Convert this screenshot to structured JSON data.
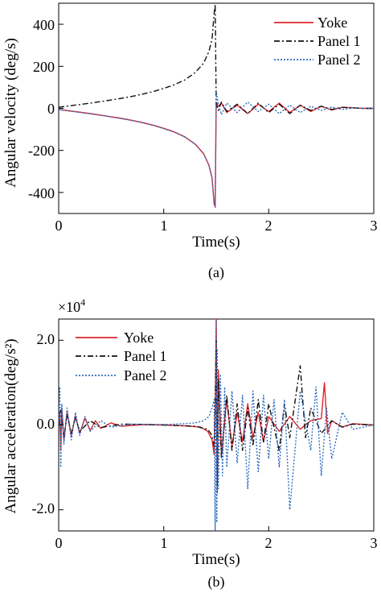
{
  "figure": {
    "panels": [
      {
        "caption": "(a)",
        "xlabel": "Time(s)",
        "ylabel": "Angular velocity (deg/s)",
        "multiplier": "",
        "multiplier_exp": "",
        "x_ticks": [
          "0",
          "1",
          "2",
          "3"
        ],
        "y_ticks": [
          "400",
          "200",
          "0",
          "-200",
          "-400"
        ]
      },
      {
        "caption": "(b)",
        "xlabel": "Time(s)",
        "ylabel": "Angular acceleration(deg/s²)",
        "multiplier": "×10",
        "multiplier_exp": "4",
        "x_ticks": [
          "0",
          "1",
          "2",
          "3"
        ],
        "y_ticks": [
          "2.0",
          "0.0",
          "-2.0"
        ]
      }
    ],
    "legend": [
      "Yoke",
      "Panel 1",
      "Panel 2"
    ]
  },
  "chart_data": [
    {
      "type": "line",
      "title": "",
      "caption": "(a)",
      "xlabel": "Time(s)",
      "ylabel": "Angular velocity (deg/s)",
      "xlim": [
        0,
        3
      ],
      "ylim": [
        -500,
        500
      ],
      "x_ticks": [
        0,
        1,
        2,
        3
      ],
      "y_ticks": [
        400,
        200,
        0,
        -200,
        -400
      ],
      "legend_position": "top-right",
      "grid": false,
      "series": [
        {
          "name": "Yoke",
          "color": "#e0262a",
          "dash": "solid",
          "x": [
            0,
            0.1,
            0.2,
            0.3,
            0.4,
            0.5,
            0.6,
            0.7,
            0.8,
            0.9,
            1.0,
            1.1,
            1.2,
            1.3,
            1.38,
            1.43,
            1.46,
            1.48,
            1.49,
            1.5,
            1.52,
            1.55,
            1.6,
            1.7,
            1.8,
            1.9,
            2.0,
            2.1,
            2.2,
            2.3,
            2.4,
            2.5,
            2.6,
            2.7,
            2.8,
            2.9,
            3.0
          ],
          "y": [
            -5,
            -12,
            -18,
            -25,
            -32,
            -40,
            -48,
            -57,
            -68,
            -80,
            -95,
            -112,
            -135,
            -170,
            -215,
            -270,
            -330,
            -450,
            -470,
            30,
            10,
            25,
            -20,
            15,
            -25,
            20,
            -15,
            25,
            -20,
            15,
            -15,
            10,
            -8,
            5,
            3,
            0,
            0
          ]
        },
        {
          "name": "Panel 1",
          "color": "#111111",
          "dash": "dashdot",
          "x": [
            0,
            0.1,
            0.2,
            0.3,
            0.4,
            0.5,
            0.6,
            0.7,
            0.8,
            0.9,
            1.0,
            1.1,
            1.2,
            1.3,
            1.38,
            1.43,
            1.46,
            1.48,
            1.49,
            1.5,
            1.52,
            1.55,
            1.6,
            1.7,
            1.8,
            1.9,
            2.0,
            2.1,
            2.2,
            2.3,
            2.4,
            2.5,
            2.6,
            2.7,
            2.8,
            2.9,
            3.0
          ],
          "y": [
            5,
            12,
            18,
            25,
            32,
            40,
            48,
            57,
            68,
            80,
            95,
            112,
            135,
            170,
            215,
            270,
            330,
            450,
            495,
            20,
            -10,
            30,
            -15,
            20,
            -25,
            25,
            -20,
            20,
            -25,
            15,
            -10,
            10,
            -5,
            5,
            2,
            0,
            0
          ]
        },
        {
          "name": "Panel 2",
          "color": "#2f6bbd",
          "dash": "dotted",
          "x": [
            0,
            0.1,
            0.2,
            0.3,
            0.4,
            0.5,
            0.6,
            0.7,
            0.8,
            0.9,
            1.0,
            1.1,
            1.2,
            1.3,
            1.38,
            1.43,
            1.46,
            1.48,
            1.49,
            1.5,
            1.52,
            1.55,
            1.6,
            1.7,
            1.8,
            1.9,
            2.0,
            2.1,
            2.2,
            2.3,
            2.4,
            2.5,
            2.6,
            2.7,
            2.8,
            2.9,
            3.0
          ],
          "y": [
            -6,
            -13,
            -19,
            -26,
            -33,
            -41,
            -49,
            -58,
            -69,
            -81,
            -96,
            -113,
            -136,
            -171,
            -216,
            -271,
            -331,
            -455,
            -465,
            80,
            20,
            -30,
            25,
            -20,
            30,
            -15,
            20,
            -25,
            15,
            -20,
            10,
            -10,
            6,
            -5,
            2,
            0,
            0
          ]
        }
      ]
    },
    {
      "type": "line",
      "title": "",
      "caption": "(b)",
      "xlabel": "Time(s)",
      "ylabel": "Angular acceleration(deg/s²)",
      "y_multiplier": "×10^4",
      "xlim": [
        0,
        3
      ],
      "ylim": [
        -2.5,
        2.5
      ],
      "x_ticks": [
        0,
        1,
        2,
        3
      ],
      "y_ticks": [
        2.0,
        0.0,
        -2.0
      ],
      "legend_position": "top-left",
      "grid": false,
      "series": [
        {
          "name": "Yoke",
          "color": "#e0262a",
          "dash": "solid",
          "x": [
            0,
            0.01,
            0.02,
            0.03,
            0.05,
            0.08,
            0.12,
            0.16,
            0.2,
            0.25,
            0.3,
            0.35,
            0.4,
            0.5,
            0.6,
            0.8,
            1.0,
            1.2,
            1.35,
            1.42,
            1.46,
            1.48,
            1.49,
            1.5,
            1.51,
            1.52,
            1.55,
            1.6,
            1.65,
            1.7,
            1.75,
            1.8,
            1.85,
            1.9,
            1.95,
            2.0,
            2.1,
            2.2,
            2.3,
            2.4,
            2.5,
            2.53,
            2.56,
            2.6,
            2.7,
            2.8,
            3.0
          ],
          "y": [
            0.0,
            0.3,
            -0.6,
            0.4,
            -0.35,
            0.3,
            -0.25,
            0.22,
            -0.2,
            0.16,
            -0.13,
            0.1,
            -0.08,
            0.05,
            -0.03,
            0.01,
            0.0,
            -0.02,
            -0.05,
            -0.15,
            -0.35,
            -0.7,
            0.3,
            2.5,
            -1.6,
            1.3,
            -0.7,
            0.6,
            -0.5,
            0.3,
            -0.4,
            0.5,
            -0.3,
            0.3,
            -0.4,
            0.2,
            -0.15,
            0.2,
            -0.1,
            0.1,
            0.15,
            1.0,
            -0.2,
            0.1,
            -0.05,
            0.03,
            0.0
          ]
        },
        {
          "name": "Panel 1",
          "color": "#111111",
          "dash": "dashdot",
          "x": [
            0,
            0.02,
            0.05,
            0.08,
            0.12,
            0.16,
            0.2,
            0.3,
            0.4,
            0.6,
            1.0,
            1.3,
            1.42,
            1.46,
            1.48,
            1.49,
            1.5,
            1.51,
            1.52,
            1.55,
            1.6,
            1.65,
            1.7,
            1.75,
            1.8,
            1.85,
            1.9,
            1.95,
            2.0,
            2.1,
            2.15,
            2.2,
            2.3,
            2.35,
            2.4,
            2.5,
            2.6,
            2.7,
            2.8,
            3.0
          ],
          "y": [
            0.0,
            0.35,
            -0.3,
            0.25,
            -0.2,
            0.18,
            -0.15,
            0.1,
            -0.06,
            0.02,
            0.0,
            -0.03,
            -0.1,
            -0.25,
            -0.5,
            0.4,
            2.0,
            -1.4,
            1.1,
            -0.8,
            0.7,
            -0.6,
            0.5,
            -0.6,
            0.4,
            -0.5,
            0.6,
            -0.4,
            0.5,
            -0.6,
            0.5,
            -0.3,
            1.4,
            -0.3,
            0.4,
            -0.2,
            0.1,
            -0.05,
            0.02,
            0.0
          ]
        },
        {
          "name": "Panel 2",
          "color": "#2f6bbd",
          "dash": "dotted",
          "x": [
            0,
            0.01,
            0.02,
            0.03,
            0.05,
            0.08,
            0.12,
            0.16,
            0.2,
            0.25,
            0.3,
            0.4,
            0.5,
            0.7,
            1.0,
            1.2,
            1.3,
            1.38,
            1.43,
            1.46,
            1.48,
            1.49,
            1.5,
            1.505,
            1.51,
            1.52,
            1.54,
            1.56,
            1.58,
            1.6,
            1.65,
            1.7,
            1.75,
            1.8,
            1.85,
            1.9,
            1.95,
            2.0,
            2.05,
            2.1,
            2.15,
            2.2,
            2.3,
            2.4,
            2.45,
            2.5,
            2.55,
            2.6,
            2.7,
            2.8,
            3.0
          ],
          "y": [
            0.0,
            0.9,
            -1.0,
            0.5,
            -0.45,
            0.4,
            -0.35,
            0.3,
            -0.25,
            0.2,
            -0.15,
            0.1,
            -0.05,
            0.02,
            0.01,
            0.03,
            0.05,
            0.1,
            0.2,
            0.4,
            0.6,
            -2.5,
            2.5,
            -2.3,
            1.8,
            -1.5,
            1.2,
            -1.2,
            0.9,
            -1.0,
            0.8,
            -0.9,
            0.7,
            -1.5,
            0.8,
            -1.1,
            0.7,
            -0.8,
            0.6,
            -1.0,
            0.6,
            -2.0,
            0.8,
            -0.6,
            0.9,
            -1.2,
            0.4,
            -0.8,
            0.3,
            -0.1,
            0.0
          ]
        }
      ]
    }
  ]
}
